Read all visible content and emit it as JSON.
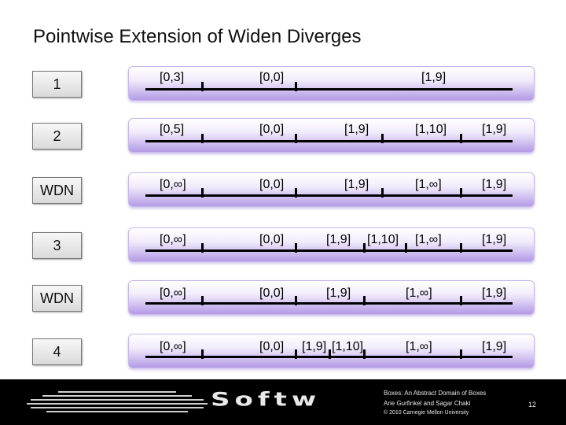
{
  "title": "Pointwise Extension of Widen Diverges",
  "rows": [
    {
      "label": "1",
      "intervals": [
        "[0,3]",
        "[0,0]",
        "[1,9]"
      ]
    },
    {
      "label": "2",
      "intervals": [
        "[0,5]",
        "[0,0]",
        "[1,9]",
        "[1,10]",
        "[1,9]"
      ]
    },
    {
      "label": "WDN",
      "intervals": [
        "[0,∞]",
        "[0,0]",
        "[1,9]",
        "[1,∞]",
        "[1,9]"
      ]
    },
    {
      "label": "3",
      "intervals": [
        "[0,∞]",
        "[0,0]",
        "[1,9]",
        "[1,10]",
        "[1,∞]",
        "[1,9]"
      ]
    },
    {
      "label": "WDN",
      "intervals": [
        "[0,∞]",
        "[0,0]",
        "[1,9]",
        "[1,∞]",
        "[1,9]"
      ]
    },
    {
      "label": "4",
      "intervals": [
        "[0,∞]",
        "[0,0]",
        "[1,9]",
        "[1,10]",
        "[1,∞]",
        "[1,9]"
      ]
    }
  ],
  "footer": {
    "brand": "Softw",
    "credit_line1": "Boxes: An Abstract Domain of Boxes",
    "credit_line2": "Arie Gurfinkel and Sagar Chaki",
    "credit_line3": "© 2010 Carnegie Mellon University",
    "page_number": "12"
  },
  "colors": {
    "bar_gradient_bottom": "#b39be6",
    "footer_background": "#000000"
  }
}
